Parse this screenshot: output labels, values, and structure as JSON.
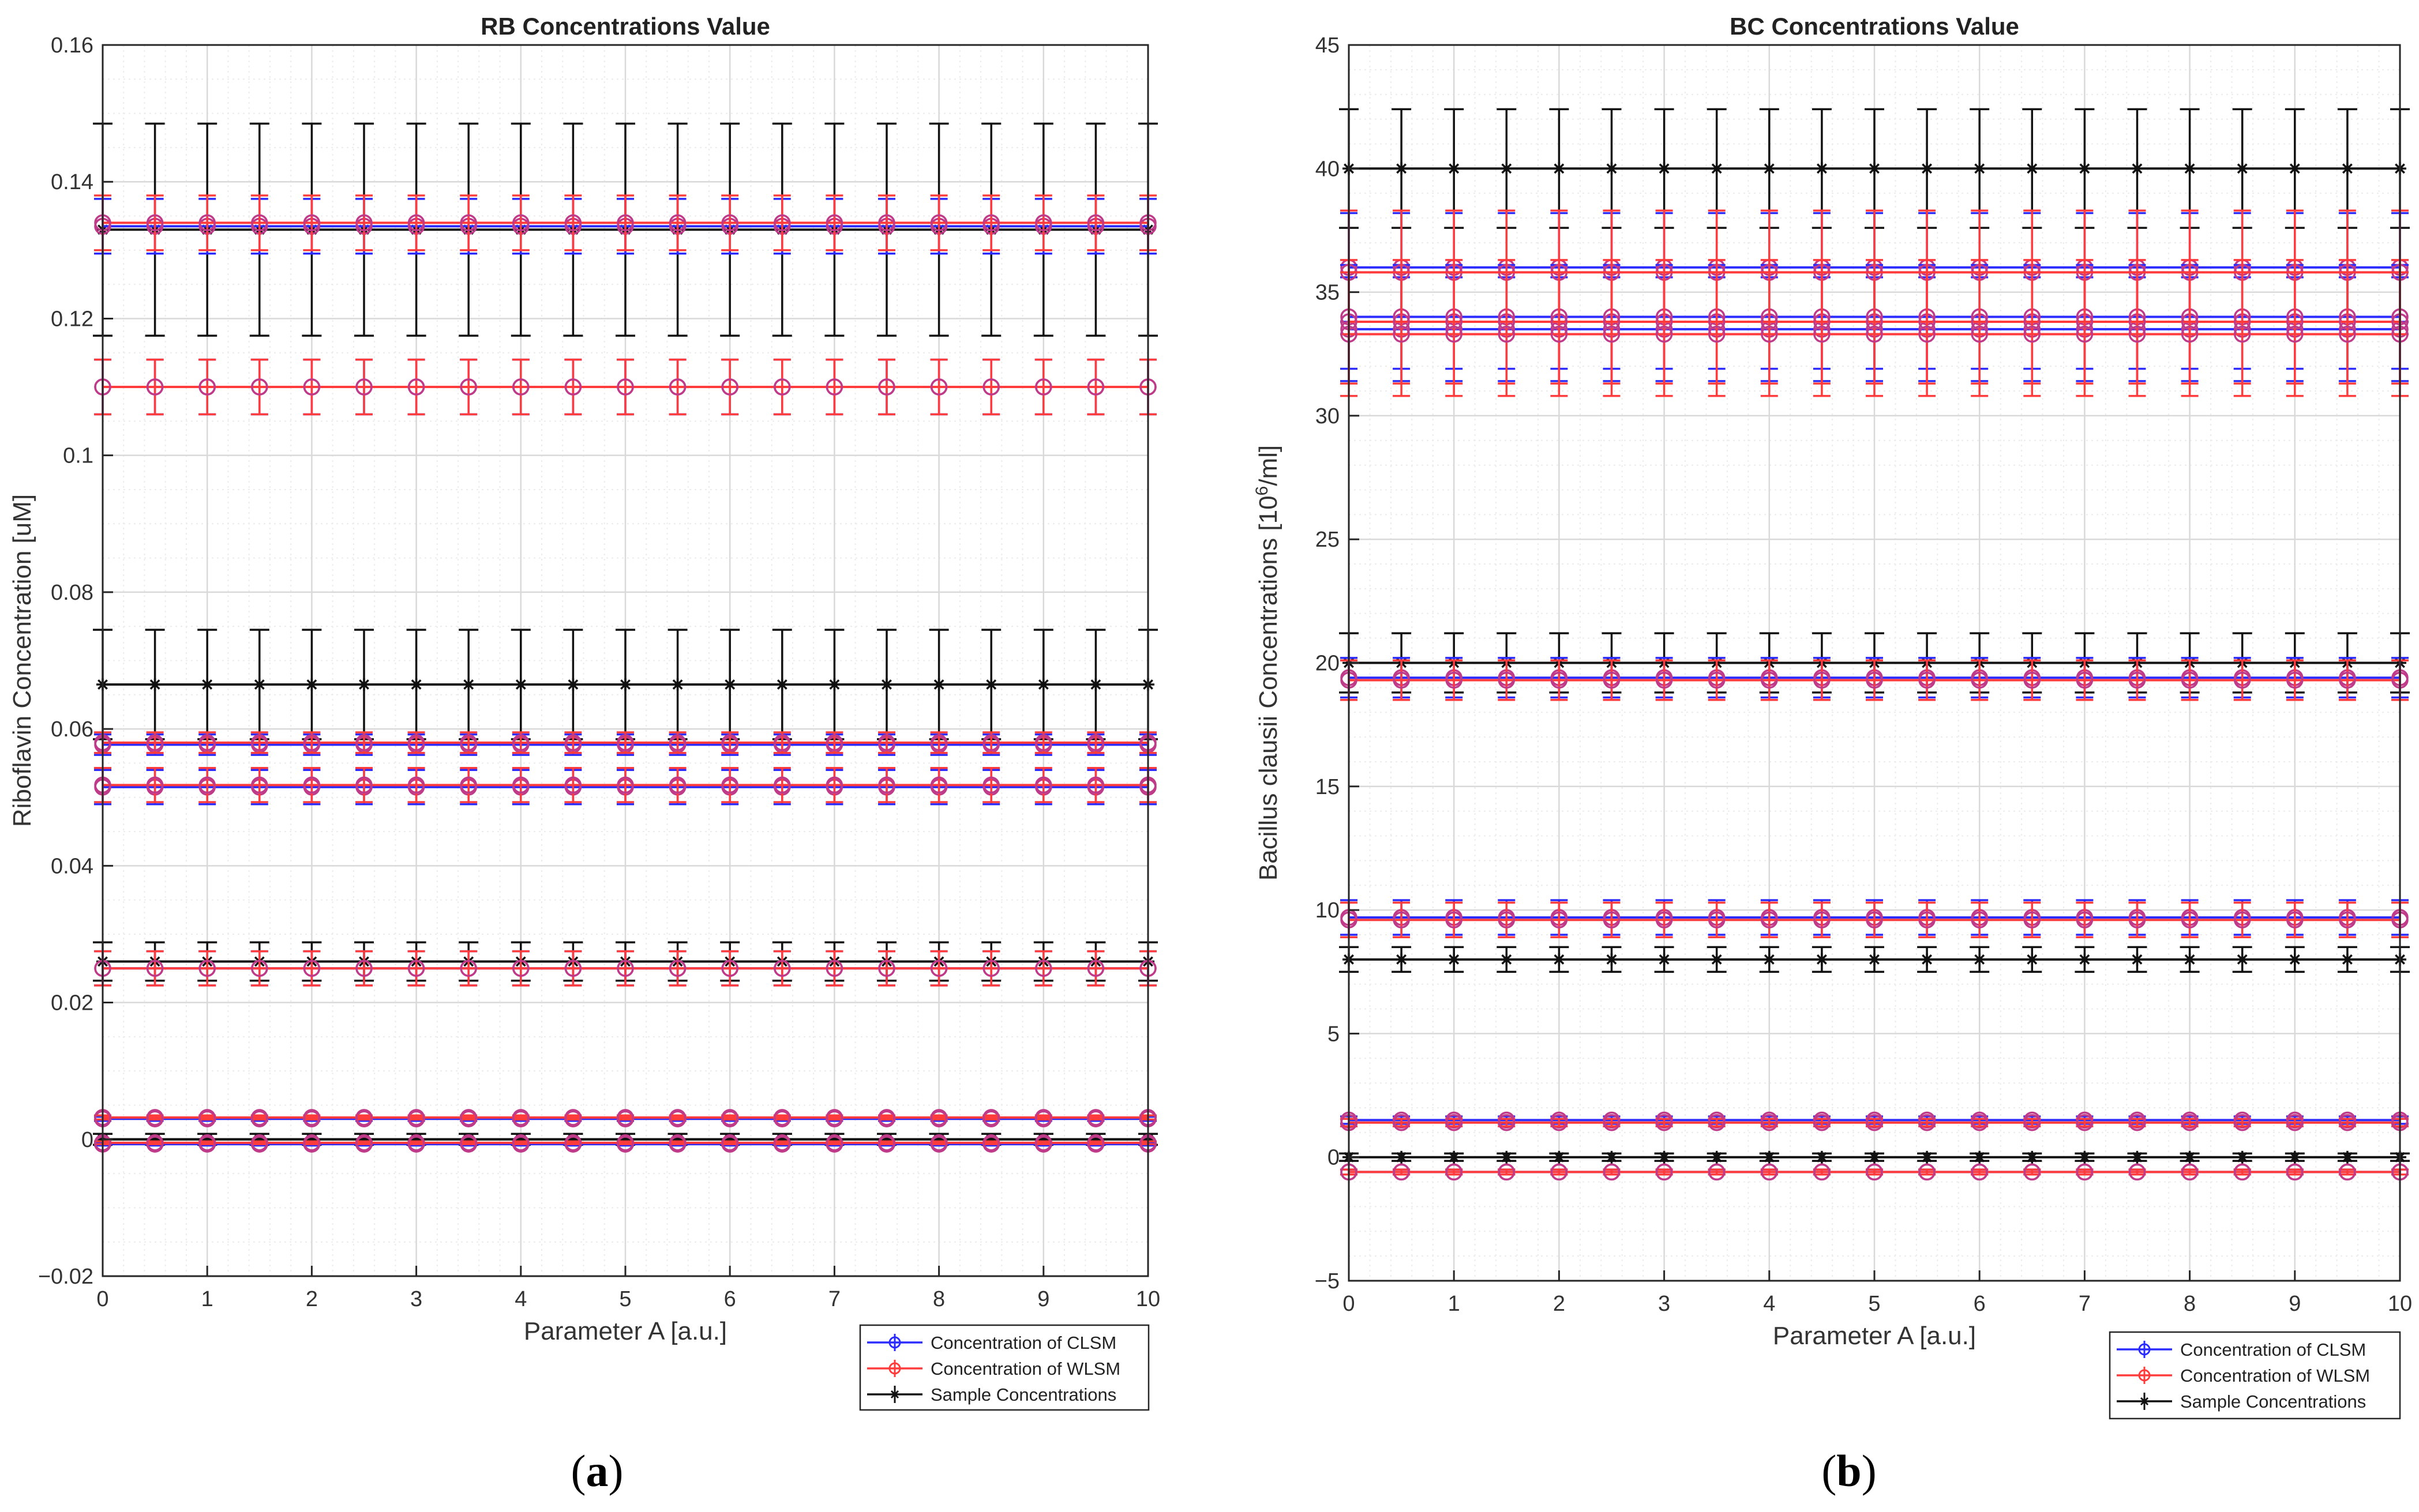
{
  "charts": [
    {
      "id": "a",
      "caption_letter": "a",
      "title": "RB Concentrations Value",
      "xlabel": "Parameter A [a.u.]",
      "ylabel": "Riboflavin Concentration [uM]",
      "ylabel_sup": "",
      "ylabel_tail": "",
      "xlim": [
        0,
        10
      ],
      "ylim": [
        -0.02,
        0.16
      ],
      "yticks": [
        -0.02,
        0,
        0.02,
        0.04,
        0.06,
        0.08,
        0.1,
        0.12,
        0.14,
        0.16
      ],
      "ytick_labels": [
        "−0.02",
        "0",
        "0.02",
        "0.04",
        "0.06",
        "0.08",
        "0.1",
        "0.12",
        "0.14",
        "0.16"
      ],
      "xticks": [
        0,
        1,
        2,
        3,
        4,
        5,
        6,
        7,
        8,
        9,
        10
      ],
      "xtick_labels": [
        "0",
        "1",
        "2",
        "3",
        "4",
        "5",
        "6",
        "7",
        "8",
        "9",
        "10"
      ],
      "ygrid_minor": 0.005,
      "sample_levels": [
        0.133,
        0.0665,
        0.026,
        0,
        0
      ],
      "sample_errors": [
        0.0155,
        0.008,
        0.0028,
        0.0008,
        0.0008
      ],
      "clsm_levels": [
        0.1335,
        0.11,
        0.0577,
        0.0515,
        0.025,
        0.003,
        -0.0007
      ],
      "clsm_errors": [
        0.004,
        0.004,
        0.0015,
        0.0025,
        0.0025,
        0.0003,
        0.0002
      ],
      "wlsm_levels": [
        0.134,
        0.11,
        0.058,
        0.0518,
        0.025,
        0.0032,
        -0.0005
      ],
      "wlsm_errors": [
        0.004,
        0.004,
        0.0015,
        0.0025,
        0.0025,
        0.0003,
        0.0002
      ],
      "x_points": [
        0,
        0.5,
        1,
        1.5,
        2,
        2.5,
        3,
        3.5,
        4,
        4.5,
        5,
        5.5,
        6,
        6.5,
        7,
        7.5,
        8,
        8.5,
        9,
        9.5,
        10
      ],
      "legend": [
        "Concentration of CLSM",
        "Concentration of WLSM",
        "Sample Concentrations"
      ],
      "legend_placement": "bottom-right-outside"
    },
    {
      "id": "b",
      "caption_letter": "b",
      "title": "BC Concentrations Value",
      "xlabel": "Parameter A [a.u.]",
      "ylabel": "Bacillus clausii Concentrations [10",
      "ylabel_sup": "6",
      "ylabel_tail": "/ml]",
      "xlim": [
        0,
        10
      ],
      "ylim": [
        -5,
        45
      ],
      "yticks": [
        -5,
        0,
        5,
        10,
        15,
        20,
        25,
        30,
        35,
        40,
        45
      ],
      "ytick_labels": [
        "−5",
        "0",
        "5",
        "10",
        "15",
        "20",
        "25",
        "30",
        "35",
        "40",
        "45"
      ],
      "xticks": [
        0,
        1,
        2,
        3,
        4,
        5,
        6,
        7,
        8,
        9,
        10
      ],
      "xtick_labels": [
        "0",
        "1",
        "2",
        "3",
        "4",
        "5",
        "6",
        "7",
        "8",
        "9",
        "10"
      ],
      "ygrid_minor": 1,
      "sample_levels": [
        40,
        20,
        8,
        0
      ],
      "sample_errors": [
        2.4,
        1.2,
        0.5,
        0.15
      ],
      "clsm_levels": [
        36,
        34,
        33.5,
        19.4,
        9.7,
        1.5,
        -0.6
      ],
      "clsm_errors": [
        2.2,
        2.1,
        2.1,
        0.8,
        0.7,
        0.15,
        0.1
      ],
      "wlsm_levels": [
        35.8,
        33.8,
        33.3,
        19.3,
        9.6,
        1.4,
        -0.6
      ],
      "wlsm_errors": [
        2.5,
        2.5,
        2.5,
        0.8,
        0.7,
        0.15,
        0.1
      ],
      "x_points": [
        0,
        0.5,
        1,
        1.5,
        2,
        2.5,
        3,
        3.5,
        4,
        4.5,
        5,
        5.5,
        6,
        6.5,
        7,
        7.5,
        8,
        8.5,
        9,
        9.5,
        10
      ],
      "legend": [
        "Concentration of CLSM",
        "Concentration of WLSM",
        "Sample Concentrations"
      ],
      "legend_placement": "bottom-right-outside"
    }
  ],
  "colors": {
    "clsm": "#2b2bff",
    "wlsm": "#ff3b3b",
    "marker": "#c03a8a",
    "sample": "#111111",
    "grid": "#d9d9d9",
    "axis": "#262626"
  },
  "icons": {
    "clsm_marker": "circle-marker",
    "sample_marker": "asterisk-marker"
  }
}
